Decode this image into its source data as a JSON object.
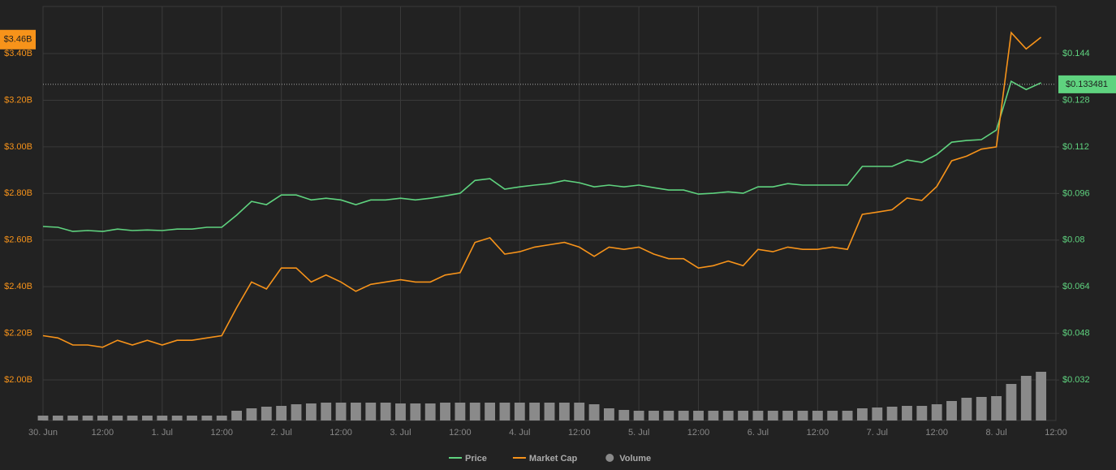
{
  "chart_data": {
    "type": "line",
    "x": [
      0,
      3,
      6,
      9,
      12,
      15,
      18,
      21,
      24,
      27,
      30,
      33,
      36,
      39,
      42,
      45,
      48,
      51,
      54,
      57,
      60,
      63,
      66,
      69,
      72,
      75,
      78,
      81,
      84,
      87,
      90,
      93,
      96,
      99,
      102,
      105,
      108,
      111,
      114,
      117,
      120,
      123,
      126,
      129,
      132,
      135,
      138,
      141,
      144,
      147,
      150,
      153,
      156,
      159,
      162,
      165,
      168,
      171,
      174,
      177,
      180,
      183,
      186,
      189,
      192,
      195,
      198,
      201
    ],
    "xlim": [
      0,
      204
    ],
    "xticks": [
      {
        "value": 0,
        "label": "30. Jun"
      },
      {
        "value": 12,
        "label": "12:00"
      },
      {
        "value": 24,
        "label": "1. Jul"
      },
      {
        "value": 36,
        "label": "12:00"
      },
      {
        "value": 48,
        "label": "2. Jul"
      },
      {
        "value": 60,
        "label": "12:00"
      },
      {
        "value": 72,
        "label": "3. Jul"
      },
      {
        "value": 84,
        "label": "12:00"
      },
      {
        "value": 96,
        "label": "4. Jul"
      },
      {
        "value": 108,
        "label": "12:00"
      },
      {
        "value": 120,
        "label": "5. Jul"
      },
      {
        "value": 132,
        "label": "12:00"
      },
      {
        "value": 144,
        "label": "6. Jul"
      },
      {
        "value": 156,
        "label": "12:00"
      },
      {
        "value": 168,
        "label": "7. Jul"
      },
      {
        "value": 180,
        "label": "12:00"
      },
      {
        "value": 192,
        "label": "8. Jul"
      },
      {
        "value": 204,
        "label": "12:00"
      }
    ],
    "ylim": [
      1.826,
      3.602
    ],
    "yticks": [
      {
        "value": 2.0,
        "label": "$2.00B"
      },
      {
        "value": 2.2,
        "label": "$2.20B"
      },
      {
        "value": 2.4,
        "label": "$2.40B"
      },
      {
        "value": 2.6,
        "label": "$2.60B"
      },
      {
        "value": 2.8,
        "label": "$2.80B"
      },
      {
        "value": 3.0,
        "label": "$3.00B"
      },
      {
        "value": 3.2,
        "label": "$3.20B"
      },
      {
        "value": 3.4,
        "label": "$3.40B"
      }
    ],
    "y2lim": [
      0.0181,
      0.1602
    ],
    "y2ticks": [
      {
        "value": 0.032,
        "label": "$0.032"
      },
      {
        "value": 0.048,
        "label": "$0.048"
      },
      {
        "value": 0.064,
        "label": "$0.064"
      },
      {
        "value": 0.08,
        "label": "$0.08"
      },
      {
        "value": 0.096,
        "label": "$0.096"
      },
      {
        "value": 0.112,
        "label": "$0.112"
      },
      {
        "value": 0.128,
        "label": "$0.128"
      },
      {
        "value": 0.144,
        "label": "$0.144"
      }
    ],
    "grid": true,
    "legend": "bottom",
    "last_price": {
      "value": 0.133481,
      "label": "$0.133481"
    },
    "last_market_cap": {
      "value": 3.46,
      "label": "$3.46B"
    },
    "series": [
      {
        "name": "Price",
        "color": "#5fd37f",
        "axis": "y2",
        "values": [
          0.0847,
          0.0844,
          0.083,
          0.0833,
          0.083,
          0.0838,
          0.0833,
          0.0835,
          0.0833,
          0.0838,
          0.0838,
          0.0844,
          0.0844,
          0.0886,
          0.0933,
          0.0922,
          0.0955,
          0.0955,
          0.0938,
          0.0944,
          0.0938,
          0.0922,
          0.0938,
          0.0938,
          0.0944,
          0.0938,
          0.0944,
          0.0952,
          0.0961,
          0.1005,
          0.1011,
          0.0975,
          0.0983,
          0.0989,
          0.0994,
          0.1005,
          0.0997,
          0.0983,
          0.0989,
          0.0983,
          0.0989,
          0.098,
          0.0972,
          0.0972,
          0.0958,
          0.0961,
          0.0966,
          0.0961,
          0.0983,
          0.0983,
          0.0994,
          0.0989,
          0.0989,
          0.0989,
          0.0989,
          0.1053,
          0.1053,
          0.1053,
          0.1075,
          0.1067,
          0.1094,
          0.1136,
          0.1142,
          0.1145,
          0.1178,
          0.1345,
          0.1317,
          0.134
        ]
      },
      {
        "name": "Market Cap",
        "color": "#f7931a",
        "values": [
          2.19,
          2.18,
          2.15,
          2.15,
          2.14,
          2.17,
          2.15,
          2.17,
          2.15,
          2.17,
          2.17,
          2.18,
          2.19,
          2.31,
          2.42,
          2.39,
          2.48,
          2.48,
          2.42,
          2.45,
          2.42,
          2.38,
          2.41,
          2.42,
          2.43,
          2.42,
          2.42,
          2.45,
          2.46,
          2.59,
          2.61,
          2.54,
          2.55,
          2.57,
          2.58,
          2.59,
          2.57,
          2.53,
          2.57,
          2.56,
          2.57,
          2.54,
          2.52,
          2.52,
          2.48,
          2.49,
          2.51,
          2.49,
          2.56,
          2.55,
          2.57,
          2.56,
          2.56,
          2.57,
          2.56,
          2.71,
          2.72,
          2.73,
          2.78,
          2.77,
          2.83,
          2.94,
          2.96,
          2.99,
          3.0,
          3.49,
          3.42,
          3.47
        ]
      },
      {
        "name": "Volume",
        "color": "#8a8a8a",
        "type": "bar",
        "values": [
          6,
          6,
          6,
          6,
          6,
          6,
          6,
          6,
          6,
          6,
          6,
          6,
          6,
          12,
          15,
          17,
          18,
          20,
          21,
          22,
          22,
          22,
          22,
          22,
          21,
          21,
          21,
          22,
          22,
          22,
          22,
          22,
          22,
          22,
          22,
          22,
          22,
          20,
          15,
          13,
          12,
          12,
          12,
          12,
          12,
          12,
          12,
          12,
          12,
          12,
          12,
          12,
          12,
          12,
          12,
          15,
          16,
          17,
          18,
          18,
          20,
          24,
          28,
          29,
          30,
          45,
          55,
          60
        ]
      }
    ]
  }
}
